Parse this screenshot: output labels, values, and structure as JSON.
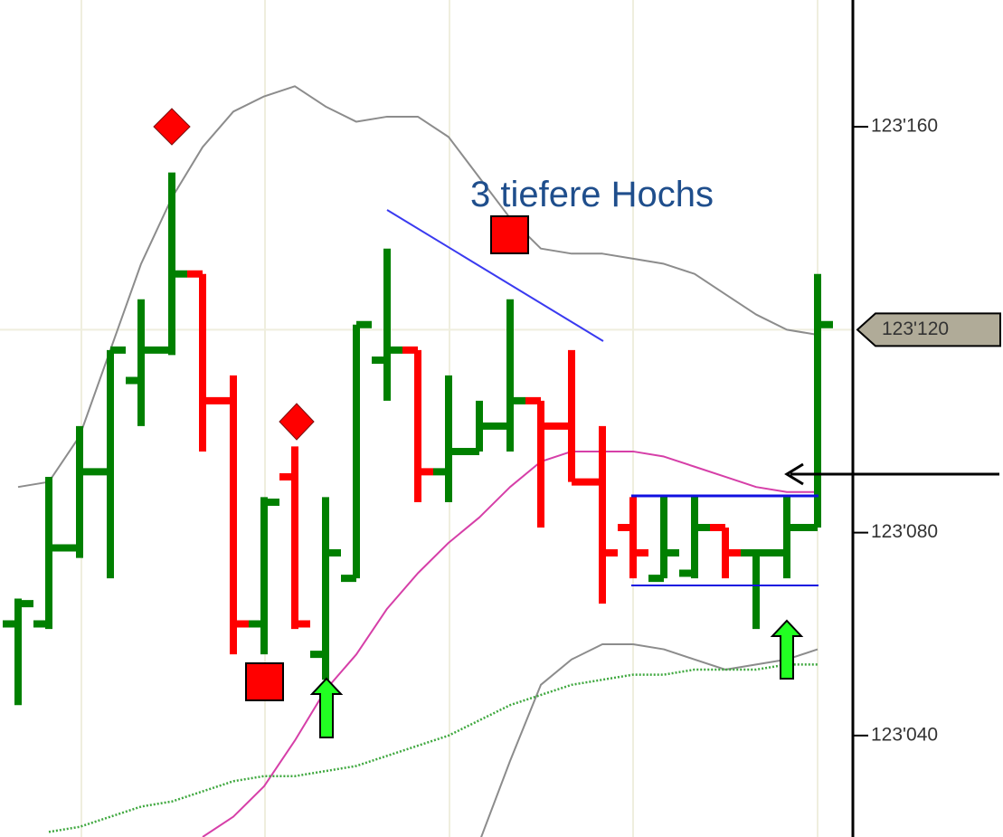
{
  "chart_data": {
    "type": "ohlc",
    "annotation": "3 tiefere Hochs",
    "up_color": "#008000",
    "down_color": "#ff0000",
    "open": [
      123062,
      123062,
      123077,
      123092,
      123110,
      123116,
      123131,
      123106,
      123062,
      123091,
      123056,
      123071,
      123114,
      123116,
      123092,
      123096,
      123101,
      123106,
      123101,
      123090,
      123081,
      123071,
      123072,
      123081,
      123076,
      123076,
      123081
    ],
    "high": [
      123067,
      123091,
      123101,
      123116,
      123126,
      123151,
      123131,
      123111,
      123087,
      123097,
      123087,
      123121,
      123136,
      123116,
      123111,
      123106,
      123126,
      123106,
      123116,
      123101,
      123087,
      123087,
      123087,
      123081,
      123076,
      123087,
      123131
    ],
    "low": [
      123046,
      123061,
      123075,
      123071,
      123101,
      123115,
      123096,
      123056,
      123056,
      123061,
      123051,
      123071,
      123106,
      123086,
      123086,
      123096,
      123096,
      123081,
      123090,
      123066,
      123071,
      123071,
      123071,
      123071,
      123061,
      123071,
      123081
    ],
    "close": [
      123066,
      123077,
      123092,
      123116,
      123116,
      123131,
      123106,
      123062,
      123086,
      123062,
      123076,
      123121,
      123116,
      123092,
      123096,
      123101,
      123106,
      123101,
      123090,
      123076,
      123076,
      123076,
      123081,
      123076,
      123076,
      123081,
      123121
    ],
    "lines": [
      {
        "color": "#8c8c8c",
        "style": "solid",
        "values": [
          123089,
          123090,
          123099,
          123116,
          123133,
          123146,
          123156,
          123163,
          123166,
          123168,
          123164,
          123161,
          123162,
          123162,
          123158,
          123150,
          123142,
          123136,
          123135,
          123135,
          123134,
          123133,
          123131,
          123127,
          123123,
          123120,
          123119
        ]
      },
      {
        "color": "#8c8c8c",
        "style": "solid",
        "values": [
          null,
          null,
          null,
          null,
          null,
          null,
          null,
          null,
          null,
          null,
          null,
          null,
          null,
          null,
          null,
          123019,
          123035,
          123050,
          123055,
          123058,
          123058,
          123057,
          123055,
          123053,
          123054,
          123055,
          123057
        ]
      },
      {
        "color": "#d63fa8",
        "style": "solid",
        "values": [
          null,
          null,
          null,
          null,
          null,
          null,
          123020,
          123024,
          123030,
          123039,
          123049,
          123056,
          123065,
          123072,
          123078,
          123083,
          123089,
          123094,
          123096,
          123096,
          123096,
          123095,
          123093,
          123091,
          123089,
          123088,
          123088
        ]
      },
      {
        "color": "#3fa83f",
        "style": "dotted",
        "values": [
          null,
          123021,
          123022,
          123024,
          123026,
          123027,
          123029,
          123031,
          123032,
          123032,
          123033,
          123034,
          123036,
          123038,
          123040,
          123043,
          123046,
          123048,
          123050,
          123051,
          123052,
          123052,
          123053,
          123053,
          123053,
          123054,
          123054
        ]
      }
    ],
    "ylim": [
      123020,
      123185
    ],
    "yticks": [
      {
        "value": 123040,
        "label": "123'040"
      },
      {
        "value": 123080,
        "label": "123'080"
      },
      {
        "value": 123160,
        "label": "123'160"
      }
    ],
    "last_price": {
      "value": 123120,
      "label": "123'120"
    }
  }
}
